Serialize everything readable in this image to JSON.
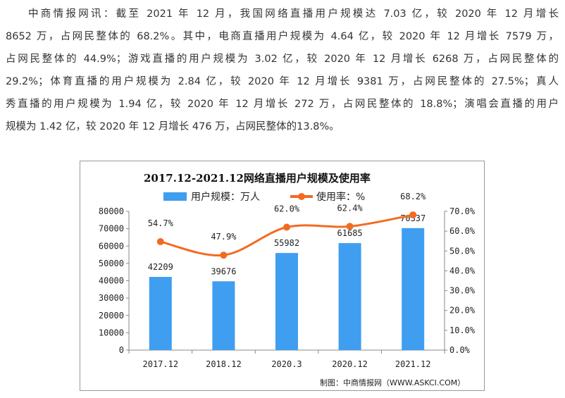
{
  "article": {
    "lines": [
      "中商情报网讯：截至 2021 年 12 月，我国网络直播用户规模达 7.03 亿，较 2020 年 12 月增长",
      "8652 万，占网民整体的 68.2%。其中，电商直播用户规模为 4.64 亿，较 2020 年 12 月增长 7579 万，",
      "占网民整体的 44.9%；游戏直播的用户规模为 3.02 亿，较 2020 年 12 月增长 6268 万，占网民整体的",
      "29.2%；体育直播的用户规模为 2.84 亿，较 2020 年 12 月增长 9381 万，占网民整体的 27.5%；真人",
      "秀直播的用户规模为 1.94 亿，较 2020 年 12 月增长 272 万，占网民整体的 18.8%；演唱会直播的用户",
      "规模为 1.42 亿，较 2020 年 12 月增长 476 万，占网民整体的13.8%。"
    ]
  },
  "chart_data": {
    "type": "bar+line",
    "title": "2017.12-2021.12网络直播用户规模及使用率",
    "categories": [
      "2017.12",
      "2018.12",
      "2020.3",
      "2020.12",
      "2021.12"
    ],
    "series": [
      {
        "name": "用户规模：万人",
        "type": "bar",
        "axis": "left",
        "values": [
          42209,
          39676,
          55982,
          61685,
          70337
        ],
        "color": "#3f9ef0"
      },
      {
        "name": "使用率：%",
        "type": "line",
        "axis": "right",
        "values": [
          54.7,
          47.9,
          62.0,
          62.4,
          68.2
        ],
        "labels": [
          "54.7%",
          "47.9%",
          "62.0%",
          "62.4%",
          "68.2%"
        ],
        "color": "#f26b21"
      }
    ],
    "left_axis": {
      "range": [
        0,
        80000
      ],
      "ticks": [
        "0",
        "10000",
        "20000",
        "30000",
        "40000",
        "50000",
        "60000",
        "70000",
        "80000"
      ]
    },
    "right_axis": {
      "range": [
        0,
        70
      ],
      "ticks": [
        "0.0%",
        "10.0%",
        "20.0%",
        "30.0%",
        "40.0%",
        "50.0%",
        "60.0%",
        "70.0%"
      ]
    },
    "legend_placement": "top",
    "grid": false,
    "source": "制图：中商情报网（WWW.ASKCI.COM）"
  }
}
